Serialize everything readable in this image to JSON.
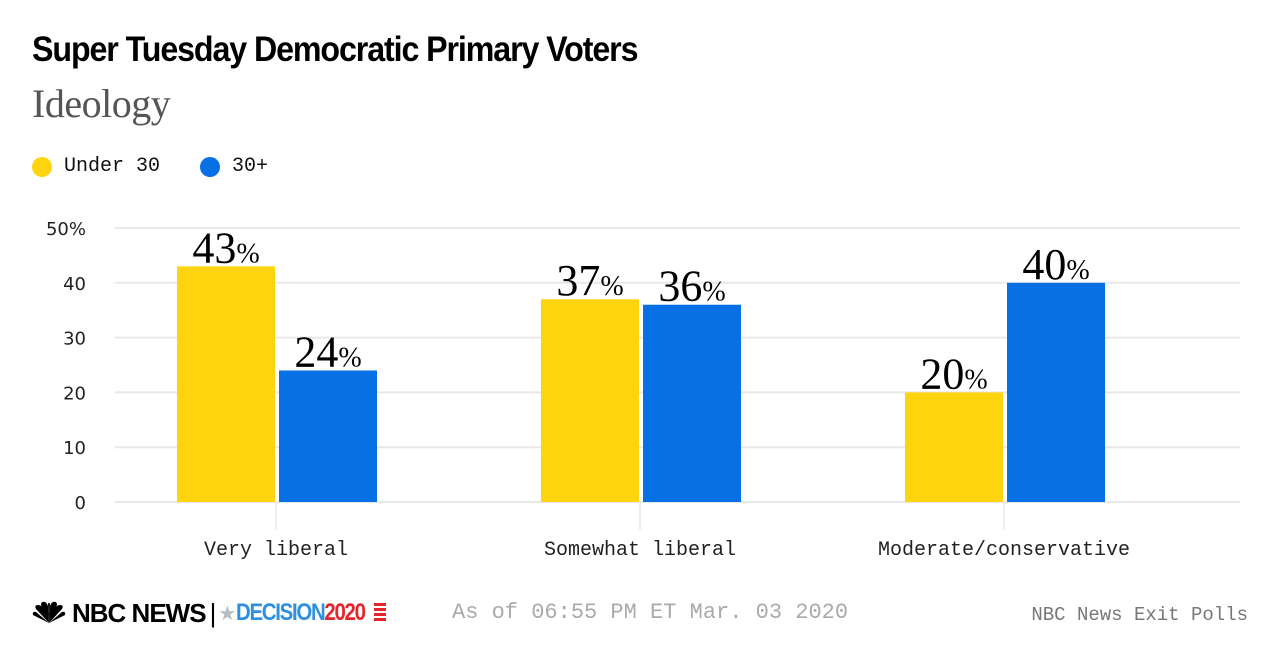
{
  "header": {
    "title": "Super Tuesday Democratic Primary Voters",
    "subtitle": "Ideology"
  },
  "legend": [
    {
      "label": "Under 30",
      "color": "#FED40F"
    },
    {
      "label": "30+",
      "color": "#0770E5"
    }
  ],
  "chart_data": {
    "type": "bar",
    "title": "Super Tuesday Democratic Primary Voters",
    "subtitle": "Ideology",
    "xlabel": "",
    "ylabel": "",
    "categories": [
      "Very liberal",
      "Somewhat liberal",
      "Moderate/conservative"
    ],
    "series": [
      {
        "name": "Under 30",
        "color": "#FED40F",
        "values": [
          43,
          37,
          20
        ]
      },
      {
        "name": "30+",
        "color": "#0770E5",
        "values": [
          24,
          36,
          40
        ]
      }
    ],
    "ylim": [
      0,
      50
    ],
    "yticks": [
      0,
      10,
      20,
      30,
      40,
      50
    ],
    "ytick_labels": [
      "0",
      "10",
      "20",
      "30",
      "40",
      "50%"
    ],
    "value_suffix": "%",
    "grid": true,
    "legend_position": "top-left"
  },
  "footer": {
    "brand": "NBC NEWS",
    "separator": "|",
    "decision_text": "DECISION",
    "decision_year": "2020",
    "as_of": "As of 06:55 PM ET Mar. 03 2020",
    "source": "NBC News Exit Polls"
  },
  "colors": {
    "gridline": "#E8E8E8",
    "axis_text": "#222222",
    "under30": "#FED40F",
    "over30": "#0770E5"
  }
}
